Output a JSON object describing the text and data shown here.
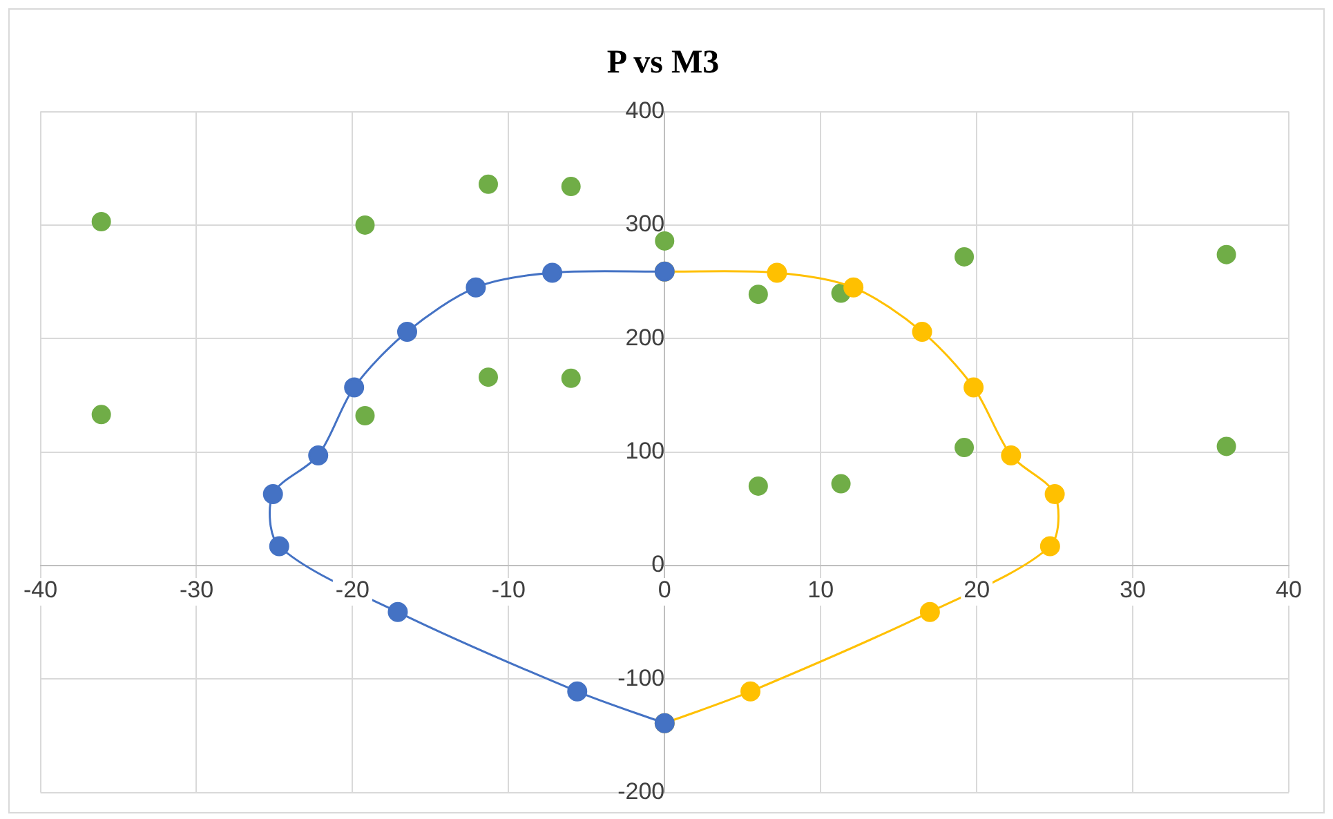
{
  "chart_data": {
    "type": "scatter",
    "title": "P vs M3",
    "xlim": [
      -40,
      40
    ],
    "xticks": [
      -40,
      -30,
      -20,
      -10,
      0,
      10,
      20,
      30,
      40
    ],
    "ylim": [
      -200,
      400
    ],
    "yticks": [
      -200,
      -100,
      0,
      100,
      200,
      300,
      400
    ],
    "grid": true,
    "legend": false,
    "marker": "circle",
    "series": [
      {
        "type": "line",
        "color": "#4472c4",
        "x": [
          0,
          -7.2,
          -12.1,
          -16.5,
          -19.9,
          -22.2,
          -25.1,
          -24.7,
          -17.1,
          -5.6,
          0
        ],
        "values": [
          259,
          258,
          245,
          206,
          157,
          97,
          63,
          17,
          -41,
          -111,
          -139
        ]
      },
      {
        "type": "line",
        "color": "#ffc000",
        "x": [
          0,
          7.2,
          12.1,
          16.5,
          19.8,
          22.2,
          25,
          24.7,
          17,
          5.5,
          0
        ],
        "values": [
          259,
          258,
          245,
          206,
          157,
          97,
          63,
          17,
          -41,
          -111,
          -139
        ]
      },
      {
        "type": "scatter",
        "color": "#70ad47",
        "x": [
          -36.1,
          -36.1,
          -19.2,
          -19.2,
          -11.3,
          -11.3,
          -6,
          -6,
          0,
          6,
          6,
          11.3,
          11.3,
          19.2,
          19.2,
          36,
          36
        ],
        "values": [
          303,
          133,
          300,
          132,
          336,
          166,
          334,
          165,
          286,
          239,
          70,
          240,
          72,
          272,
          104,
          274,
          105
        ]
      }
    ]
  }
}
